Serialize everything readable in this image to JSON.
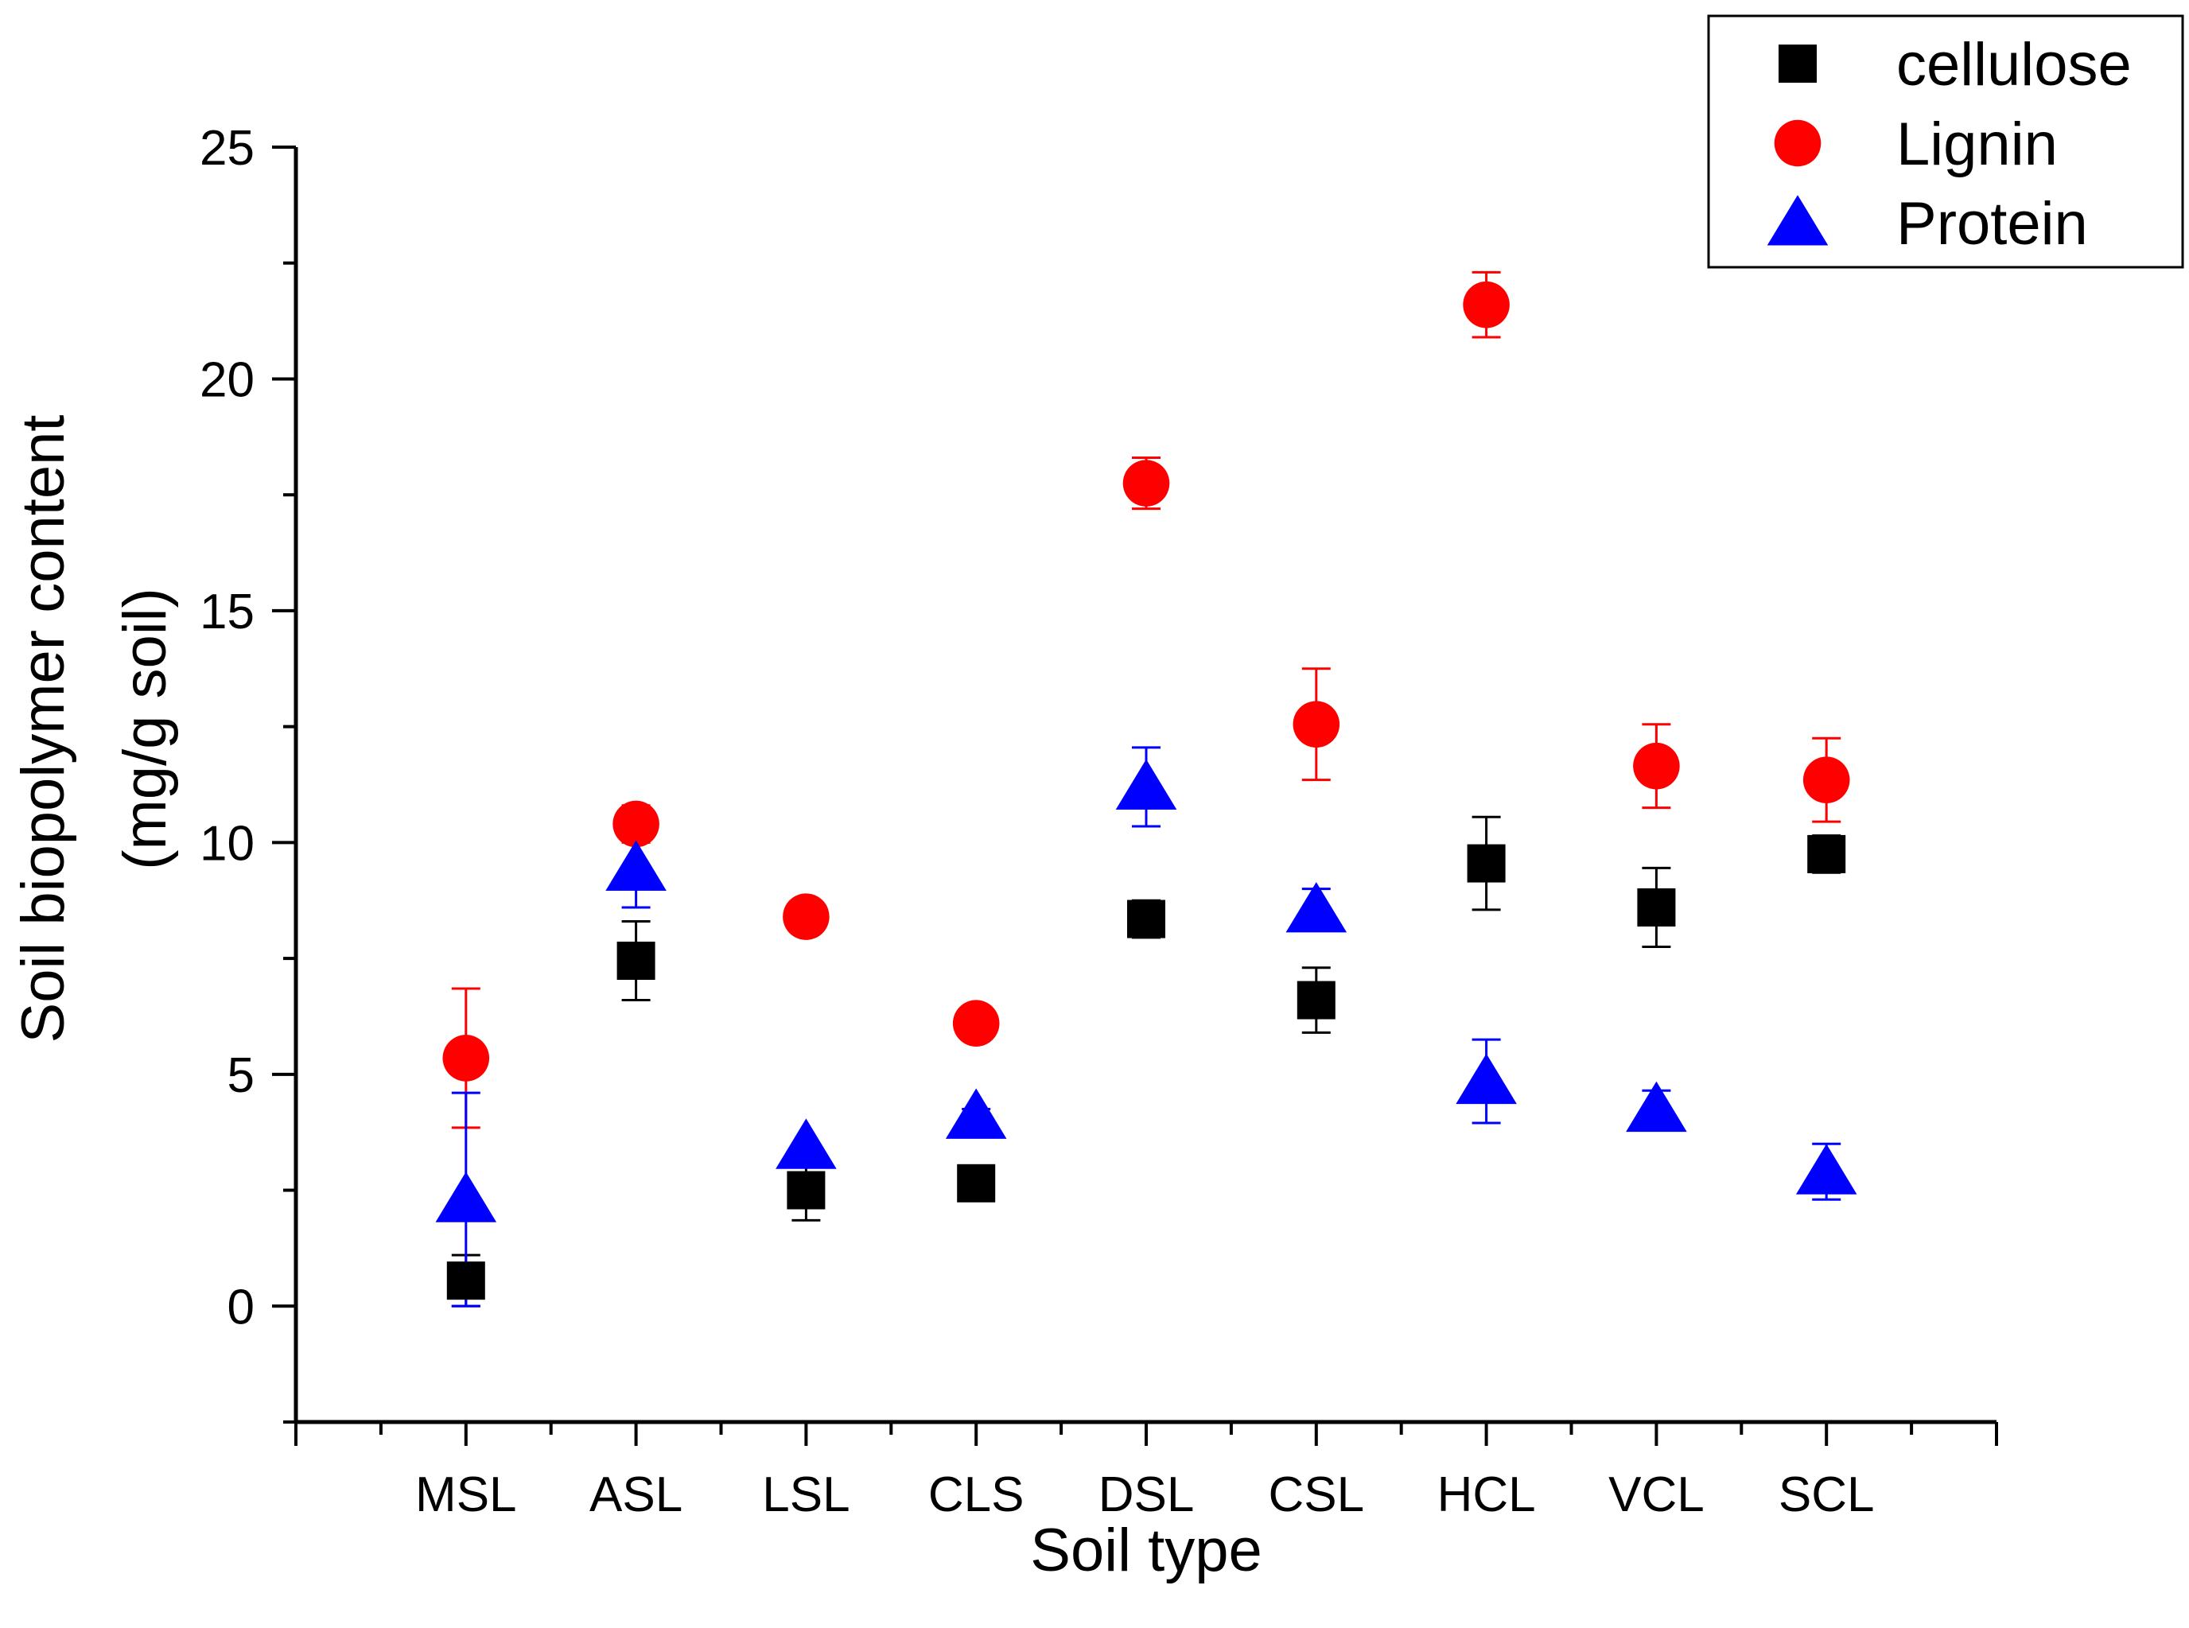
{
  "chart_data": {
    "type": "scatter",
    "xlabel": "Soil type",
    "ylabel_line1": "Soil biopolymer content",
    "ylabel_line2": "(mg/g soil)",
    "categories": [
      "MSL",
      "ASL",
      "LSL",
      "CLS",
      "DSL",
      "CSL",
      "HCL",
      "VCL",
      "SCL"
    ],
    "ylim": [
      -2.5,
      25
    ],
    "yticks": [
      0,
      5,
      10,
      15,
      20,
      25
    ],
    "legend_position": "top-right",
    "series": [
      {
        "name": "cellulose",
        "marker": "square",
        "color": "#000000",
        "values": [
          0.55,
          7.45,
          2.5,
          2.65,
          8.35,
          6.6,
          9.55,
          8.6,
          9.75
        ],
        "errors": [
          0.55,
          0.85,
          0.65,
          0.35,
          0.4,
          0.7,
          1.0,
          0.85,
          0.4
        ]
      },
      {
        "name": "Lignin",
        "marker": "circle",
        "color": "#ff0000",
        "values": [
          5.35,
          10.4,
          8.4,
          6.1,
          17.75,
          12.55,
          21.6,
          11.65,
          11.35
        ],
        "errors": [
          1.5,
          0.4,
          0.35,
          0.0,
          0.55,
          1.2,
          0.7,
          0.9,
          0.9
        ]
      },
      {
        "name": "Protein",
        "marker": "triangle",
        "color": "#0000ff",
        "values": [
          2.3,
          9.45,
          3.45,
          4.1,
          11.2,
          8.55,
          4.85,
          4.25,
          2.9
        ],
        "errors": [
          2.3,
          0.85,
          0.0,
          0.15,
          0.85,
          0.45,
          0.9,
          0.4,
          0.6
        ]
      }
    ]
  }
}
